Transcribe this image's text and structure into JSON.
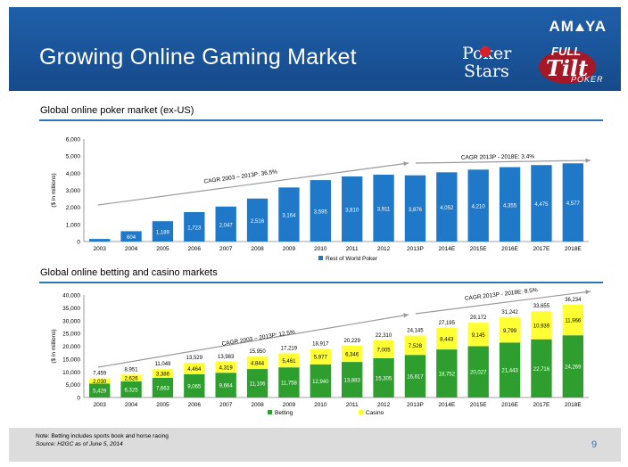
{
  "header": {
    "title": "Growing Online Gaming Market",
    "brand_pre": "AM",
    "brand_post": "YA",
    "logo_pokerstars_line1": "Poker",
    "logo_pokerstars_line2": "Stars",
    "logo_fulltilt_line1": "FULL",
    "logo_fulltilt_line2": "Tilt",
    "logo_fulltilt_line3": "POKER"
  },
  "footer": {
    "note1": "Note:  Betting includes sports book and horse racing",
    "note2": "Source:  H2GC as of June 5, 2014",
    "page": "9"
  },
  "colors": {
    "header_blue": "#1a5499",
    "poker_bar": "#1f78c8",
    "betting": "#2e9e2e",
    "casino": "#ffff33"
  },
  "chart_data": [
    {
      "type": "bar",
      "title": "Global online poker market (ex-US)",
      "ylabel": "($ in millions)",
      "ylim": [
        0,
        6000
      ],
      "yticks": [
        "0",
        "1,000",
        "2,000",
        "3,000",
        "4,000",
        "5,000",
        "6,000"
      ],
      "categories": [
        "2003",
        "2004",
        "2005",
        "2006",
        "2007",
        "2008",
        "2009",
        "2010",
        "2011",
        "2012",
        "2013P",
        "2014E",
        "2015E",
        "2016E",
        "2017E",
        "2018E"
      ],
      "series": [
        {
          "name": "Rest of World Poker",
          "values": [
            150,
            604,
            1189,
            1723,
            2047,
            2516,
            3164,
            3595,
            3810,
            3911,
            3876,
            4052,
            4210,
            4355,
            4475,
            4577
          ]
        }
      ],
      "data_labels": [
        "",
        "604",
        "1,189",
        "1,723",
        "2,047",
        "2,516",
        "3,164",
        "3,595",
        "3,810",
        "3,911",
        "3,876",
        "4,052",
        "4,210",
        "4,355",
        "4,475",
        "4,577"
      ],
      "annotations": [
        "CAGR 2003 – 2013P: 36.5%",
        "CAGR 2013P - 2018E: 3.4%"
      ],
      "legend": "bottom"
    },
    {
      "type": "bar",
      "stacked": true,
      "title": "Global online betting and casino markets",
      "ylabel": "($ in millions)",
      "ylim": [
        0,
        40000
      ],
      "yticks": [
        "0",
        "5,000",
        "10,000",
        "15,000",
        "20,000",
        "25,000",
        "30,000",
        "35,000",
        "40,000"
      ],
      "categories": [
        "2003",
        "2004",
        "2005",
        "2006",
        "2007",
        "2008",
        "2009",
        "2010",
        "2011",
        "2012",
        "2013P",
        "2014E",
        "2015E",
        "2016E",
        "2017E",
        "2018E"
      ],
      "series": [
        {
          "name": "Betting",
          "values": [
            5429,
            6325,
            7663,
            9065,
            9664,
            11106,
            11758,
            12940,
            13883,
            15305,
            16617,
            18752,
            20027,
            21443,
            22716,
            24269
          ],
          "labels": [
            "5,429",
            "6,325",
            "7,663",
            "9,065",
            "9,664",
            "11,106",
            "11,758",
            "12,940",
            "13,883",
            "15,305",
            "16,617",
            "18,752",
            "20,027",
            "21,443",
            "22,716",
            "24,269"
          ]
        },
        {
          "name": "Casino",
          "values": [
            2030,
            2626,
            3386,
            4464,
            4319,
            4844,
            5461,
            5977,
            6346,
            7005,
            7528,
            8443,
            9145,
            9799,
            10939,
            11966
          ],
          "labels": [
            "2,030",
            "2,626",
            "3,386",
            "4,464",
            "4,319",
            "4,844",
            "5,461",
            "5,977",
            "6,346",
            "7,005",
            "7,528",
            "8,443",
            "9,145",
            "9,799",
            "10,939",
            "11,966"
          ]
        }
      ],
      "totals": [
        "7,459",
        "8,951",
        "11,049",
        "13,529",
        "13,983",
        "15,950",
        "17,219",
        "18,917",
        "20,229",
        "22,310",
        "24,145",
        "27,195",
        "29,172",
        "31,242",
        "33,655",
        "36,234"
      ],
      "annotations": [
        "CAGR 2003 – 2013P: 12.5%",
        "CAGR 2013P - 2018E: 8.5%"
      ],
      "legend": "bottom"
    }
  ]
}
